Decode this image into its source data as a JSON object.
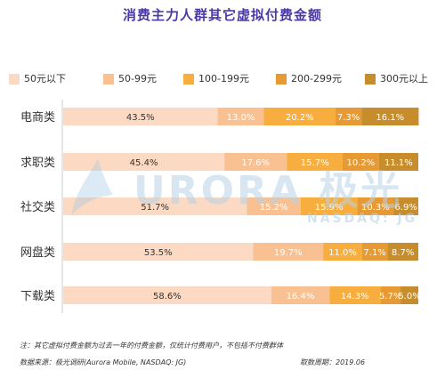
{
  "title": "消费主力人群其它虚拟付费金额",
  "chart_data": {
    "type": "bar",
    "orientation": "horizontal",
    "stacked": true,
    "categories": [
      "电商类",
      "求职类",
      "社交类",
      "网盘类",
      "下载类"
    ],
    "series": [
      {
        "name": "50元以下",
        "color": "#fbd9c2",
        "values": [
          43.5,
          45.4,
          51.7,
          53.5,
          58.6
        ],
        "labels": [
          "43.5%",
          "45.4%",
          "51.7%",
          "53.5%",
          "58.6%"
        ]
      },
      {
        "name": "50-99元",
        "color": "#f9c092",
        "values": [
          13.0,
          17.6,
          15.2,
          19.7,
          16.4
        ],
        "labels": [
          "13.0%",
          "17.6%",
          "15.2%",
          "19.7%",
          "16.4%"
        ]
      },
      {
        "name": "100-199元",
        "color": "#f7ae3e",
        "values": [
          20.2,
          15.7,
          15.9,
          11.0,
          14.3
        ],
        "labels": [
          "20.2%",
          "15.7%",
          "15.9%",
          "11.0%",
          "14.3%"
        ]
      },
      {
        "name": "200-299元",
        "color": "#e79a33",
        "values": [
          7.3,
          10.2,
          10.3,
          7.1,
          5.7
        ],
        "labels": [
          "7.3%",
          "10.2%",
          "10.3%",
          "7.1%",
          "5.7%"
        ]
      },
      {
        "name": "300元以上",
        "color": "#c78d2c",
        "values": [
          16.1,
          11.1,
          6.9,
          8.7,
          5.0
        ],
        "labels": [
          "16.1%",
          "11.1%",
          "6.9%",
          "8.7%",
          "5.0%"
        ]
      }
    ],
    "xlim": [
      0,
      100
    ],
    "legend": "top",
    "grid": false
  },
  "footer": {
    "note": "注：其它虚拟付费金额为过去一年的付费金额，仅统计付费用户，不包括不付费群体",
    "source": "数据来源：极光调研(Aurora Mobile, NASDAQ: JG)",
    "date": "取数周期：2019.06"
  },
  "watermark": {
    "text": "URORA 极光",
    "sub": "NASDAQ: JG"
  }
}
